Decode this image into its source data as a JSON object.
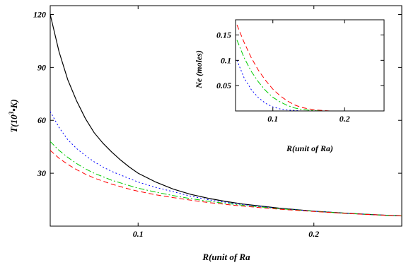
{
  "chart_data": [
    {
      "type": "line",
      "title": "",
      "xlabel": "R(unit of Ra",
      "ylabel_main": "T(10",
      "ylabel_sup": "3",
      "ylabel_tail": "•K)",
      "xlim": [
        0.05,
        0.25
      ],
      "ylim": [
        0,
        125
      ],
      "xticks": [
        0.1,
        0.2
      ],
      "xtick_labels": [
        "0.1",
        "0.2"
      ],
      "yticks": [
        30,
        60,
        90,
        120
      ],
      "ytick_labels": [
        "30",
        "60",
        "90",
        "120"
      ],
      "grid": false,
      "series": [
        {
          "color": "#000000",
          "dash": "solid",
          "x": [
            0.05,
            0.055,
            0.06,
            0.065,
            0.07,
            0.075,
            0.08,
            0.085,
            0.09,
            0.095,
            0.1,
            0.11,
            0.12,
            0.13,
            0.14,
            0.15,
            0.16,
            0.18,
            0.2,
            0.22,
            0.24,
            0.25
          ],
          "y": [
            120,
            99,
            83,
            71,
            61,
            53,
            47,
            42,
            37.5,
            33.5,
            30,
            25,
            21,
            18,
            15.8,
            14,
            12.5,
            10.2,
            8.5,
            7.2,
            6.2,
            5.8
          ]
        },
        {
          "color": "#0000ff",
          "dash": "dotted",
          "x": [
            0.05,
            0.055,
            0.06,
            0.065,
            0.07,
            0.075,
            0.08,
            0.085,
            0.09,
            0.095,
            0.1,
            0.11,
            0.12,
            0.13,
            0.14,
            0.15,
            0.16,
            0.18,
            0.2,
            0.22,
            0.24,
            0.25
          ],
          "y": [
            65,
            56,
            49,
            44,
            40,
            36.5,
            33.5,
            31,
            29,
            27,
            25,
            22,
            19.5,
            17,
            15,
            13.5,
            12.2,
            10,
            8.5,
            7.2,
            6.2,
            5.8
          ]
        },
        {
          "color": "#00cc00",
          "dash": "dashdot",
          "x": [
            0.05,
            0.055,
            0.06,
            0.065,
            0.07,
            0.075,
            0.08,
            0.085,
            0.09,
            0.095,
            0.1,
            0.11,
            0.12,
            0.13,
            0.14,
            0.15,
            0.16,
            0.18,
            0.2,
            0.22,
            0.24,
            0.25
          ],
          "y": [
            48,
            43,
            39,
            35.5,
            32.5,
            30,
            28,
            26,
            24.5,
            23,
            21.5,
            19.3,
            17.3,
            15.6,
            14.1,
            12.9,
            11.8,
            9.9,
            8.4,
            7.2,
            6.2,
            5.8
          ]
        },
        {
          "color": "#ff0000",
          "dash": "dashed",
          "x": [
            0.05,
            0.055,
            0.06,
            0.065,
            0.07,
            0.075,
            0.08,
            0.085,
            0.09,
            0.095,
            0.1,
            0.11,
            0.12,
            0.13,
            0.14,
            0.15,
            0.16,
            0.18,
            0.2,
            0.22,
            0.24,
            0.25
          ],
          "y": [
            43,
            38.5,
            35,
            32,
            29.5,
            27.3,
            25.5,
            23.8,
            22.4,
            21,
            19.8,
            17.8,
            16.2,
            14.7,
            13.4,
            12.3,
            11.3,
            9.6,
            8.3,
            7.1,
            6.2,
            5.8
          ]
        }
      ]
    },
    {
      "type": "line",
      "title": "",
      "xlabel": "R(unit of Ra)",
      "ylabel": "Ne (moles)",
      "xlim": [
        0.048,
        0.255
      ],
      "ylim": [
        0,
        0.18
      ],
      "xticks": [
        0.1,
        0.2
      ],
      "xtick_labels": [
        "0.1",
        "0.2"
      ],
      "yticks": [
        0.05,
        0.1,
        0.15
      ],
      "ytick_labels": [
        "0.05",
        "0.1",
        "0.15"
      ],
      "grid": false,
      "series": [
        {
          "color": "#ff0000",
          "dash": "dashed",
          "x": [
            0.05,
            0.06,
            0.07,
            0.08,
            0.09,
            0.1,
            0.11,
            0.12,
            0.13,
            0.14,
            0.15,
            0.16,
            0.17,
            0.18,
            0.2,
            0.22,
            0.25
          ],
          "y": [
            0.17,
            0.135,
            0.105,
            0.08,
            0.06,
            0.043,
            0.03,
            0.02,
            0.012,
            0.007,
            0.004,
            0.002,
            0.001,
            0,
            0,
            0,
            0
          ]
        },
        {
          "color": "#00cc00",
          "dash": "dashdot",
          "x": [
            0.05,
            0.06,
            0.07,
            0.08,
            0.09,
            0.1,
            0.11,
            0.12,
            0.13,
            0.14,
            0.15,
            0.16,
            0.17,
            0.18,
            0.2,
            0.22,
            0.25
          ],
          "y": [
            0.14,
            0.105,
            0.078,
            0.057,
            0.04,
            0.027,
            0.018,
            0.011,
            0.006,
            0.003,
            0.0015,
            0.0005,
            0,
            0,
            0,
            0,
            0
          ]
        },
        {
          "color": "#0000ff",
          "dash": "dotted",
          "x": [
            0.05,
            0.06,
            0.07,
            0.08,
            0.09,
            0.1,
            0.11,
            0.12,
            0.13,
            0.14,
            0.15,
            0.16,
            0.2,
            0.25
          ],
          "y": [
            0.1,
            0.065,
            0.042,
            0.026,
            0.015,
            0.008,
            0.004,
            0.002,
            0.001,
            0,
            0,
            0,
            0,
            0
          ]
        }
      ]
    }
  ]
}
